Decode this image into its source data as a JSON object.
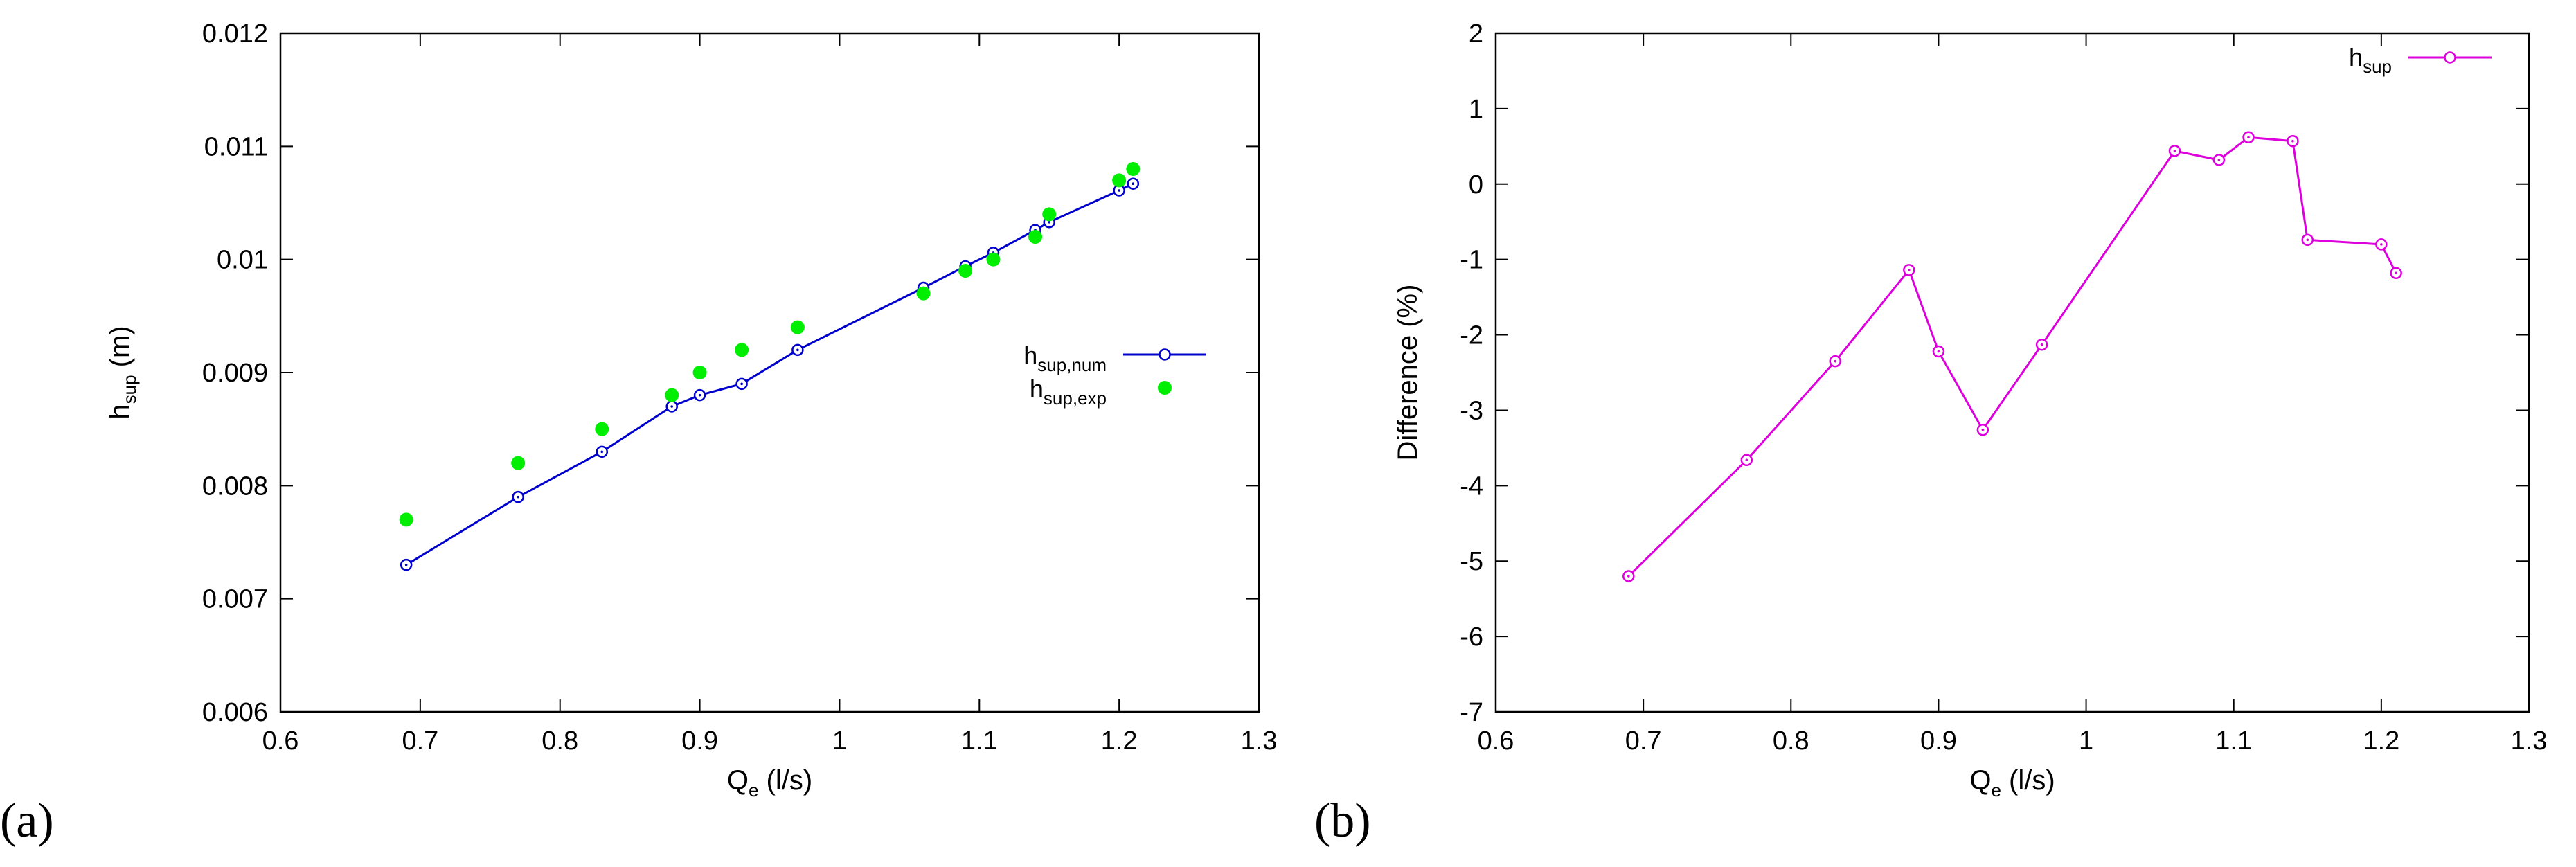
{
  "chart_data": [
    {
      "type": "line",
      "panel_label": "(a)",
      "title": "",
      "xlabel": {
        "main": "Q",
        "sub": "e",
        "tail": " (l/s)"
      },
      "ylabel": {
        "main": "h",
        "sub": "sup",
        "tail": " (m)"
      },
      "xlim": [
        0.6,
        1.3
      ],
      "ylim": [
        0.006,
        0.012
      ],
      "x_ticks": [
        0.6,
        0.7,
        0.8,
        0.9,
        1.0,
        1.1,
        1.2,
        1.3
      ],
      "x_tick_labels": [
        "0.6",
        "0.7",
        "0.8",
        "0.9",
        "1",
        "1.1",
        "1.2",
        "1.3"
      ],
      "y_ticks": [
        0.006,
        0.007,
        0.008,
        0.009,
        0.01,
        0.011,
        0.012
      ],
      "y_tick_labels": [
        "0.006",
        "0.007",
        "0.008",
        "0.009",
        "0.01",
        "0.011",
        "0.012"
      ],
      "grid": false,
      "legend_position": "right",
      "series": [
        {
          "name": {
            "main": "h",
            "sub": "sup,num"
          },
          "style": "line-open-circle",
          "color": "#0000cc",
          "x": [
            0.69,
            0.77,
            0.83,
            0.88,
            0.9,
            0.93,
            0.97,
            1.06,
            1.09,
            1.11,
            1.14,
            1.15,
            1.2,
            1.21
          ],
          "y": [
            0.0073,
            0.0079,
            0.0083,
            0.0087,
            0.0088,
            0.0089,
            0.0092,
            0.00975,
            0.00994,
            0.01006,
            0.01026,
            0.01033,
            0.01061,
            0.01067
          ]
        },
        {
          "name": {
            "main": "h",
            "sub": "sup,exp"
          },
          "style": "filled-dot",
          "color": "#00ee00",
          "x": [
            0.69,
            0.77,
            0.83,
            0.88,
            0.9,
            0.93,
            0.97,
            1.06,
            1.09,
            1.11,
            1.14,
            1.15,
            1.2,
            1.21
          ],
          "y": [
            0.0077,
            0.0082,
            0.0085,
            0.0088,
            0.009,
            0.0092,
            0.0094,
            0.0097,
            0.0099,
            0.01,
            0.0102,
            0.0104,
            0.0107,
            0.0108
          ]
        }
      ]
    },
    {
      "type": "line",
      "panel_label": "(b)",
      "title": "",
      "xlabel": {
        "main": "Q",
        "sub": "e",
        "tail": " (l/s)"
      },
      "ylabel": {
        "main": "Difference (%)",
        "sub": "",
        "tail": ""
      },
      "xlim": [
        0.6,
        1.3
      ],
      "ylim": [
        -7,
        2
      ],
      "x_ticks": [
        0.6,
        0.7,
        0.8,
        0.9,
        1.0,
        1.1,
        1.2,
        1.3
      ],
      "x_tick_labels": [
        "0.6",
        "0.7",
        "0.8",
        "0.9",
        "1",
        "1.1",
        "1.2",
        "1.3"
      ],
      "y_ticks": [
        -7,
        -6,
        -5,
        -4,
        -3,
        -2,
        -1,
        0,
        1,
        2
      ],
      "y_tick_labels": [
        "-7",
        "-6",
        "-5",
        "-4",
        "-3",
        "-2",
        "-1",
        "0",
        "1",
        "2"
      ],
      "grid": false,
      "legend_position": "top-right",
      "series": [
        {
          "name": {
            "main": "h",
            "sub": "sup"
          },
          "style": "line-open-circle",
          "color": "#dd00dd",
          "x": [
            0.69,
            0.77,
            0.83,
            0.88,
            0.9,
            0.93,
            0.97,
            1.06,
            1.09,
            1.11,
            1.14,
            1.15,
            1.2,
            1.21
          ],
          "y": [
            -5.2,
            -3.66,
            -2.35,
            -1.14,
            -2.22,
            -3.26,
            -2.13,
            0.44,
            0.32,
            0.62,
            0.57,
            -0.74,
            -0.8,
            -1.18
          ]
        }
      ]
    }
  ]
}
